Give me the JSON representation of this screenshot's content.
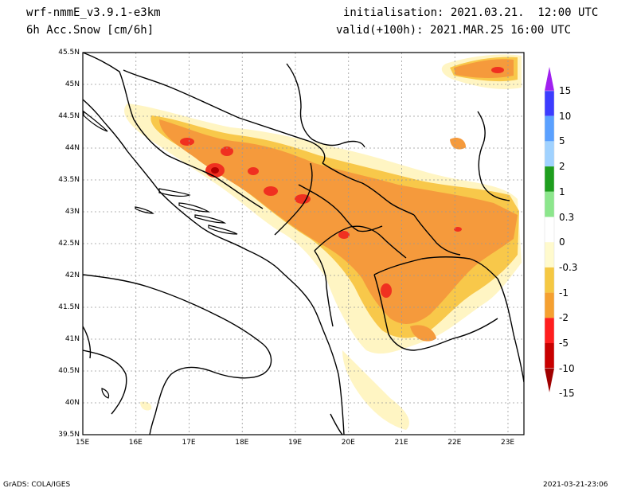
{
  "header": {
    "model": "wrf-nmmE_v3.9.1-e3km",
    "field": "6h Acc.Snow [cm/6h]",
    "init": "initialisation: 2021.03.21.  12:00 UTC",
    "valid": "valid(+100h): 2021.MAR.25 16:00 UTC"
  },
  "axes": {
    "lat_ticks": [
      "45.5N",
      "45N",
      "44.5N",
      "44N",
      "43.5N",
      "43N",
      "42.5N",
      "42N",
      "41.5N",
      "41N",
      "40.5N",
      "40N",
      "39.5N"
    ],
    "lon_ticks": [
      "15E",
      "16E",
      "17E",
      "18E",
      "19E",
      "20E",
      "21E",
      "22E",
      "23E"
    ],
    "lat_range": [
      39.5,
      45.5
    ],
    "lon_range": [
      15,
      23.3
    ]
  },
  "legend": {
    "labels": [
      "15",
      "10",
      "5",
      "2",
      "1",
      "0.3",
      "0",
      "-0.3",
      "-1",
      "-2",
      "-5",
      "-10",
      "-15"
    ],
    "colors": [
      "#a020f0",
      "#3c3cff",
      "#5aa0ff",
      "#a0d2ff",
      "#1e9e1e",
      "#8ce68c",
      "#ffffff",
      "#fffacd",
      "#f5c842",
      "#f5a030",
      "#ff1e1e",
      "#c80000",
      "#a00000"
    ]
  },
  "snow_levels": {
    "light": "#fff5c3",
    "moderate": "#f8c84a",
    "heavy": "#f59a3c",
    "very_heavy": "#f03020",
    "extreme": "#b40000"
  },
  "footer": {
    "left": "GrADS: COLA/IGES",
    "right": "2021-03-21-23:06"
  }
}
